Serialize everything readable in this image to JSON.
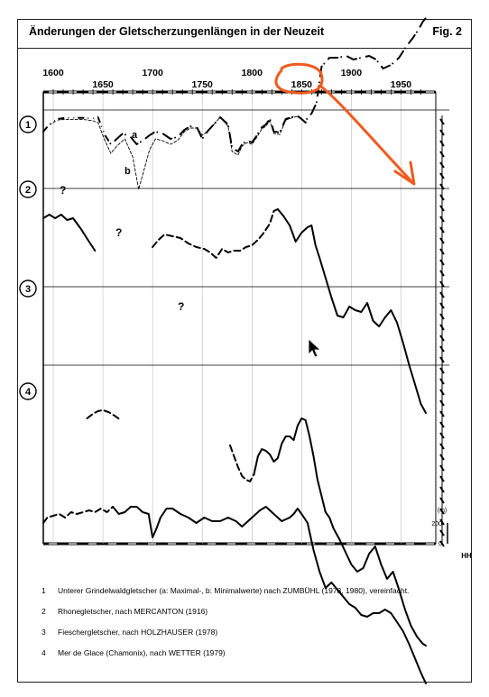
{
  "header": {
    "title": "Änderungen der Gletscherzungenlängen in der Neuzeit",
    "figure_label": "Fig. 2"
  },
  "chart_data": {
    "type": "line",
    "title": "Änderungen der Gletscherzungenlängen in der Neuzeit",
    "x_ticks": [
      "1600",
      "1650",
      "1700",
      "1750",
      "1800",
      "1850",
      "1900",
      "1950"
    ],
    "xlim": [
      1590,
      1985
    ],
    "scale_label": "(m)",
    "scale_ticks": [
      "200",
      "0"
    ],
    "scale_unit": "HH",
    "panel_labels": [
      "1",
      "2",
      "3",
      "4"
    ],
    "curve_labels": [
      "a",
      "b"
    ],
    "question_marks": [
      "?",
      "?",
      "?"
    ],
    "series": [
      {
        "name": "a",
        "panel": "1",
        "x": [
          1590,
          1596,
          1604,
          1612,
          1620,
          1630,
          1640,
          1645,
          1652,
          1658,
          1664,
          1670,
          1678,
          1684,
          1690,
          1697,
          1703,
          1710,
          1718,
          1725,
          1732,
          1738,
          1745,
          1750,
          1755,
          1760,
          1768,
          1776,
          1780,
          1786,
          1790,
          1795,
          1800,
          1805,
          1810,
          1814,
          1818,
          1822,
          1828,
          1834,
          1840,
          1845,
          1850,
          1854,
          1856,
          1860,
          1865,
          1870,
          1878,
          1886,
          1895,
          1902,
          1910,
          1918,
          1925,
          1932,
          1940,
          1948,
          1955,
          1962,
          1968,
          1972,
          1975
        ],
        "y": [
          60,
          40,
          25,
          22,
          22,
          22,
          24,
          20,
          70,
          95,
          80,
          65,
          75,
          95,
          85,
          70,
          60,
          65,
          80,
          75,
          55,
          45,
          50,
          80,
          60,
          45,
          20,
          40,
          105,
          115,
          95,
          85,
          90,
          70,
          48,
          40,
          25,
          60,
          62,
          25,
          20,
          15,
          25,
          35,
          20,
          10,
          -20,
          -120,
          -145,
          -145,
          -150,
          -140,
          -145,
          -150,
          -140,
          -115,
          -125,
          -145,
          -175,
          -200,
          -225,
          -245,
          -255
        ]
      },
      {
        "name": "b",
        "panel": "1",
        "x": [
          1590,
          1596,
          1604,
          1612,
          1620,
          1630,
          1640,
          1645,
          1652,
          1658,
          1664,
          1672,
          1680,
          1686,
          1690,
          1697,
          1703,
          1710,
          1718,
          1725,
          1732,
          1738,
          1745,
          1750,
          1755,
          1760,
          1768,
          1776,
          1780,
          1786,
          1790,
          1795,
          1800,
          1805,
          1810,
          1814,
          1818,
          1822,
          1828,
          1834,
          1840,
          1845,
          1850
        ],
        "y": [
          60,
          42,
          28,
          26,
          26,
          26,
          30,
          35,
          85,
          120,
          100,
          80,
          130,
          220,
          180,
          110,
          80,
          85,
          95,
          85,
          60,
          50,
          50,
          70,
          60,
          45,
          20,
          45,
          115,
          125,
          100,
          90,
          95,
          75,
          52,
          45,
          30,
          65,
          68,
          28,
          22,
          18,
          22
        ]
      },
      {
        "name": "2",
        "panel": "2",
        "x": [
          1590,
          1596,
          1602,
          1608,
          1614,
          1620,
          1628,
          1636,
          1642
        ],
        "y": [
          300,
          290,
          300,
          290,
          305,
          300,
          330,
          365,
          390
        ]
      },
      {
        "name": "2",
        "panel": "2",
        "x": [
          1700,
          1706,
          1712,
          1720,
          1728,
          1736,
          1744,
          1752,
          1758,
          1764,
          1770,
          1776,
          1782,
          1788,
          1794,
          1800,
          1806,
          1812,
          1818,
          1822,
          1826
        ],
        "y": [
          380,
          360,
          345,
          350,
          355,
          370,
          380,
          385,
          395,
          410,
          385,
          395,
          390,
          390,
          380,
          375,
          360,
          340,
          315,
          280,
          275
        ]
      },
      {
        "name": "2",
        "panel": "2",
        "x": [
          1826,
          1832,
          1838,
          1844,
          1850,
          1856,
          1860,
          1864,
          1868,
          1874,
          1880,
          1886,
          1892,
          1898,
          1904,
          1910,
          1916,
          1922,
          1928,
          1934,
          1940,
          1946,
          1952,
          1958,
          1964,
          1970,
          1975
        ],
        "y": [
          275,
          295,
          320,
          365,
          340,
          325,
          320,
          375,
          410,
          465,
          520,
          570,
          575,
          545,
          555,
          560,
          535,
          585,
          600,
          575,
          555,
          590,
          645,
          705,
          760,
          815,
          840
        ]
      },
      {
        "name": "3",
        "panel": "3",
        "x": [
          1634,
          1640,
          1645,
          1650,
          1656,
          1662,
          1668
        ],
        "y": [
          855,
          842,
          835,
          832,
          838,
          848,
          860
        ]
      },
      {
        "name": "3",
        "panel": "3",
        "x": [
          1778,
          1782,
          1786,
          1790,
          1794,
          1798,
          1802
        ],
        "y": [
          930,
          960,
          990,
          1015,
          1025,
          1030,
          1010
        ]
      },
      {
        "name": "3",
        "panel": "3",
        "x": [
          1802,
          1806,
          1810,
          1814,
          1818,
          1822,
          1826,
          1830,
          1834,
          1838,
          1842,
          1846,
          1850,
          1854,
          1858,
          1862,
          1866,
          1870,
          1874,
          1878,
          1882,
          1888,
          1894,
          1900,
          1906,
          1912,
          1918,
          1924,
          1930,
          1936,
          1942,
          1948,
          1954,
          1960,
          1966,
          1972,
          1975
        ],
        "y": [
          1010,
          960,
          940,
          945,
          955,
          975,
          965,
          925,
          905,
          905,
          915,
          875,
          855,
          860,
          905,
          960,
          1025,
          1070,
          1115,
          1130,
          1160,
          1190,
          1225,
          1260,
          1280,
          1270,
          1230,
          1210,
          1260,
          1300,
          1280,
          1330,
          1385,
          1430,
          1460,
          1480,
          1485
        ]
      },
      {
        "name": "4",
        "panel": "4",
        "x": [
          1590,
          1594,
          1600,
          1606,
          1612,
          1618,
          1624,
          1630,
          1636,
          1642,
          1648,
          1654,
          1660
        ],
        "y": [
          1145,
          1130,
          1125,
          1120,
          1130,
          1115,
          1120,
          1115,
          1110,
          1115,
          1105,
          1115,
          1100
        ]
      },
      {
        "name": "4",
        "panel": "4",
        "x": [
          1660,
          1666,
          1672,
          1678,
          1684,
          1690,
          1696,
          1700,
          1704,
          1708,
          1714,
          1720,
          1728,
          1736,
          1744,
          1752,
          1760,
          1768,
          1776,
          1784,
          1790,
          1796,
          1802,
          1808,
          1814,
          1820,
          1826,
          1830,
          1834,
          1838,
          1842,
          1846,
          1850,
          1856
        ],
        "y": [
          1100,
          1120,
          1115,
          1100,
          1100,
          1115,
          1120,
          1185,
          1160,
          1130,
          1105,
          1105,
          1120,
          1130,
          1145,
          1130,
          1140,
          1140,
          1130,
          1140,
          1155,
          1140,
          1125,
          1110,
          1100,
          1115,
          1130,
          1140,
          1135,
          1130,
          1120,
          1105,
          1120,
          1145
        ]
      },
      {
        "name": "4",
        "panel": "4",
        "x": [
          1856,
          1862,
          1868,
          1874,
          1880,
          1886,
          1892,
          1898,
          1904,
          1910,
          1916,
          1922,
          1928,
          1934,
          1940,
          1946,
          1952,
          1958,
          1964,
          1970,
          1975
        ],
        "y": [
          1145,
          1220,
          1280,
          1325,
          1310,
          1330,
          1350,
          1370,
          1380,
          1400,
          1405,
          1395,
          1395,
          1385,
          1395,
          1420,
          1445,
          1480,
          1520,
          1560,
          1590
        ]
      }
    ]
  },
  "annotations": [
    {
      "kind": "circle",
      "color": "#f05a1e"
    },
    {
      "kind": "arrow",
      "color": "#f05a1e"
    }
  ],
  "cursor_icon": "mouse-pointer-icon",
  "notes": [
    {
      "num": "1",
      "text": "Unterer Grindelwaldgletscher (a: Maximal-, b: Minimalwerte) nach ZUMBÜHL (1978, 1980), vereinfacht."
    },
    {
      "num": "2",
      "text": "Rhonegletscher, nach MERCANTON (1916)"
    },
    {
      "num": "3",
      "text": "Fieschergletscher, nach HOLZHAUSER (1978)"
    },
    {
      "num": "4",
      "text": "Mer de Glace (Chamonix), nach WETTER (1979)"
    }
  ]
}
